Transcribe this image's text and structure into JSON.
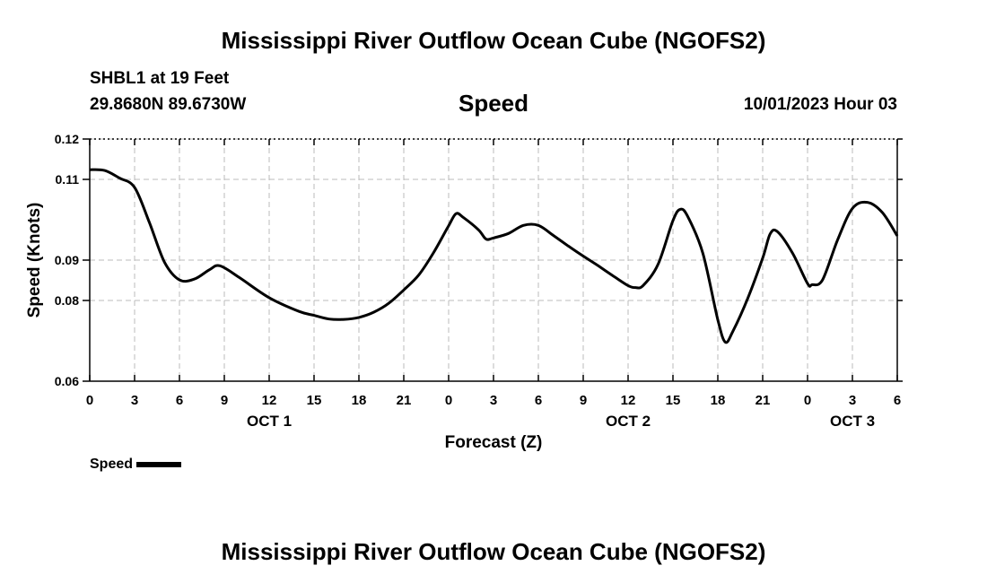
{
  "chart_data": {
    "type": "line",
    "title": "Mississippi River Outflow Ocean Cube (NGOFS2)",
    "footer_title": "Mississippi River Outflow Ocean Cube (NGOFS2)",
    "station": "SHBL1 at 19 Feet",
    "coordinates": "29.8680N  89.6730W",
    "subtitle": "Speed",
    "datetime": "10/01/2023 Hour 03",
    "xlabel": "Forecast (Z)",
    "ylabel": "Speed (Knots)",
    "ylim": [
      0.06,
      0.12
    ],
    "y_ticks": [
      0.06,
      0.08,
      0.09,
      0.11,
      0.12
    ],
    "xlim": [
      0,
      54
    ],
    "x_ticks": [
      0,
      3,
      6,
      9,
      12,
      15,
      18,
      21,
      24,
      27,
      30,
      33,
      36,
      39,
      42,
      45,
      48,
      51,
      54
    ],
    "x_tick_labels": [
      "0",
      "3",
      "6",
      "9",
      "12",
      "15",
      "18",
      "21",
      "0",
      "3",
      "6",
      "9",
      "12",
      "15",
      "18",
      "21",
      "0",
      "3",
      "6"
    ],
    "day_labels": [
      {
        "x": 12,
        "label": "OCT 1"
      },
      {
        "x": 36,
        "label": "OCT 2"
      },
      {
        "x": 51,
        "label": "OCT 3"
      }
    ],
    "grid": true,
    "legend": "bottom-left",
    "series": [
      {
        "name": "Speed",
        "color": "#000000",
        "x": [
          0,
          1,
          2,
          3,
          4,
          5,
          6,
          7,
          8,
          8.7,
          10,
          12,
          14,
          15,
          16,
          17,
          18,
          19,
          20,
          21,
          22,
          23,
          24,
          24.5,
          25,
          26,
          26.5,
          27,
          28,
          29,
          30,
          31,
          32,
          33,
          34,
          35,
          36,
          36.5,
          37,
          38,
          39,
          39.5,
          40,
          41,
          42,
          42.5,
          43,
          44,
          45,
          45.5,
          46,
          47,
          48,
          48.3,
          49,
          50,
          51,
          52,
          53,
          54
        ],
        "y": [
          0.1124,
          0.1122,
          0.1103,
          0.108,
          0.0992,
          0.0895,
          0.0851,
          0.0853,
          0.0876,
          0.0886,
          0.0857,
          0.0807,
          0.0773,
          0.0763,
          0.0754,
          0.0753,
          0.0758,
          0.0771,
          0.0793,
          0.0826,
          0.0863,
          0.0919,
          0.0985,
          0.1015,
          0.1005,
          0.0975,
          0.0952,
          0.0955,
          0.0966,
          0.0986,
          0.0986,
          0.0961,
          0.0935,
          0.091,
          0.0886,
          0.0861,
          0.0837,
          0.0832,
          0.0837,
          0.0889,
          0.0998,
          0.1026,
          0.1007,
          0.0917,
          0.0752,
          0.0697,
          0.0723,
          0.0805,
          0.0905,
          0.0965,
          0.097,
          0.0917,
          0.0842,
          0.0839,
          0.0851,
          0.0949,
          0.1028,
          0.1043,
          0.1018,
          0.096
        ]
      }
    ]
  }
}
